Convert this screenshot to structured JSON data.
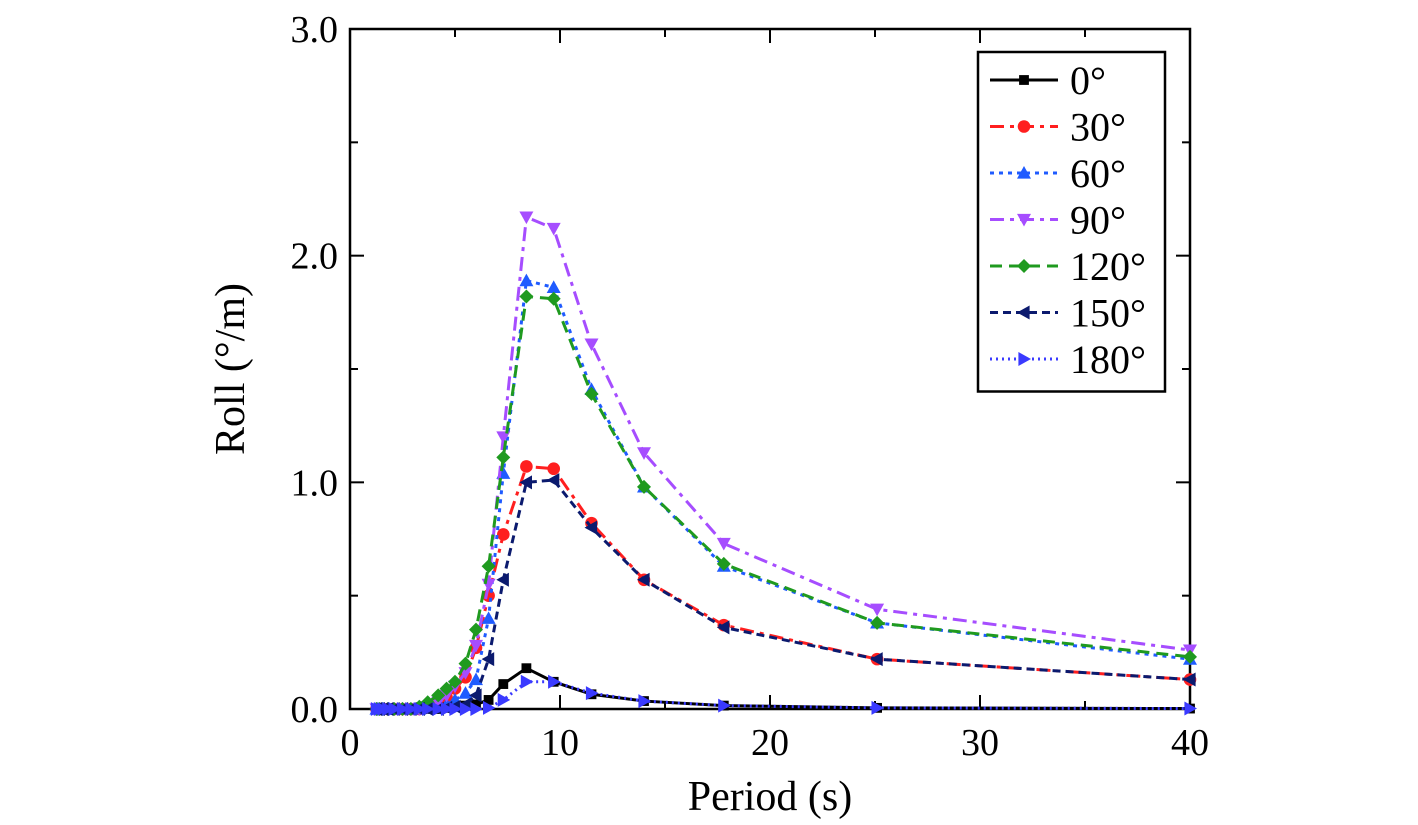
{
  "chart_data": {
    "type": "line",
    "title": "",
    "xlabel": "Period (s)",
    "ylabel": "Roll (°/m)",
    "xlim": [
      0,
      40
    ],
    "ylim": [
      0,
      3
    ],
    "xticks": [
      0,
      10,
      20,
      30,
      40
    ],
    "xtick_labels": [
      "0",
      "10",
      "20",
      "30",
      "40"
    ],
    "yticks": [
      0,
      1,
      2,
      3
    ],
    "ytick_labels": [
      "0.0",
      "1.0",
      "2.0",
      "3.0"
    ],
    "grid": false,
    "legend_position": "top-right",
    "x": [
      1.26,
      1.4,
      1.57,
      1.8,
      2.1,
      2.5,
      2.9,
      3.3,
      3.7,
      4.2,
      4.6,
      5.0,
      5.5,
      6.0,
      6.6,
      7.3,
      8.4,
      9.7,
      11.5,
      14.0,
      17.8,
      25.1,
      40.0
    ],
    "series": [
      {
        "name": "0°",
        "color": "#000000",
        "marker": "square",
        "dash": "solid",
        "values": [
          0,
          0,
          0,
          0,
          0,
          0,
          0,
          0,
          0,
          0,
          0.005,
          0.01,
          0.015,
          0.02,
          0.04,
          0.11,
          0.18,
          0.12,
          0.065,
          0.035,
          0.015,
          0.005,
          0.002
        ]
      },
      {
        "name": "30°",
        "color": "#ff1f1f",
        "marker": "circle",
        "dash": "dashdot",
        "values": [
          0,
          0,
          0,
          0,
          0,
          0,
          0,
          0,
          0.01,
          0.02,
          0.05,
          0.09,
          0.14,
          0.27,
          0.5,
          0.77,
          1.07,
          1.06,
          0.82,
          0.57,
          0.37,
          0.22,
          0.13
        ]
      },
      {
        "name": "60°",
        "color": "#1f5bff",
        "marker": "triangle-up",
        "dash": "dot",
        "values": [
          0,
          0,
          0,
          0,
          0,
          0,
          0,
          0,
          0.005,
          0.01,
          0.02,
          0.04,
          0.07,
          0.13,
          0.4,
          1.04,
          1.89,
          1.86,
          1.41,
          0.98,
          0.63,
          0.38,
          0.22
        ]
      },
      {
        "name": "90°",
        "color": "#a64dff",
        "marker": "triangle-down",
        "dash": "dashdot",
        "values": [
          0,
          0,
          0,
          0,
          0,
          0,
          0,
          0,
          0.01,
          0.03,
          0.06,
          0.1,
          0.16,
          0.28,
          0.55,
          1.2,
          2.17,
          2.12,
          1.61,
          1.13,
          0.73,
          0.44,
          0.26
        ]
      },
      {
        "name": "120°",
        "color": "#1f9a1f",
        "marker": "diamond",
        "dash": "dash",
        "values": [
          0,
          0,
          0,
          0,
          0,
          0,
          0,
          0.01,
          0.03,
          0.06,
          0.09,
          0.12,
          0.2,
          0.35,
          0.63,
          1.11,
          1.82,
          1.81,
          1.39,
          0.98,
          0.64,
          0.38,
          0.23
        ]
      },
      {
        "name": "150°",
        "color": "#0b1a6e",
        "marker": "triangle-left",
        "dash": "shortdash",
        "values": [
          0,
          0,
          0,
          0,
          0,
          0,
          0,
          0,
          0,
          0,
          0.005,
          0.01,
          0.02,
          0.06,
          0.22,
          0.57,
          1.0,
          1.01,
          0.8,
          0.57,
          0.36,
          0.22,
          0.13
        ]
      },
      {
        "name": "180°",
        "color": "#3a3aff",
        "marker": "triangle-right",
        "dash": "dotted",
        "values": [
          0,
          0,
          0,
          0,
          0,
          0,
          0,
          0,
          0,
          0,
          0,
          0,
          0,
          0,
          0.005,
          0.04,
          0.12,
          0.12,
          0.07,
          0.035,
          0.015,
          0.005,
          0.002
        ]
      }
    ]
  }
}
